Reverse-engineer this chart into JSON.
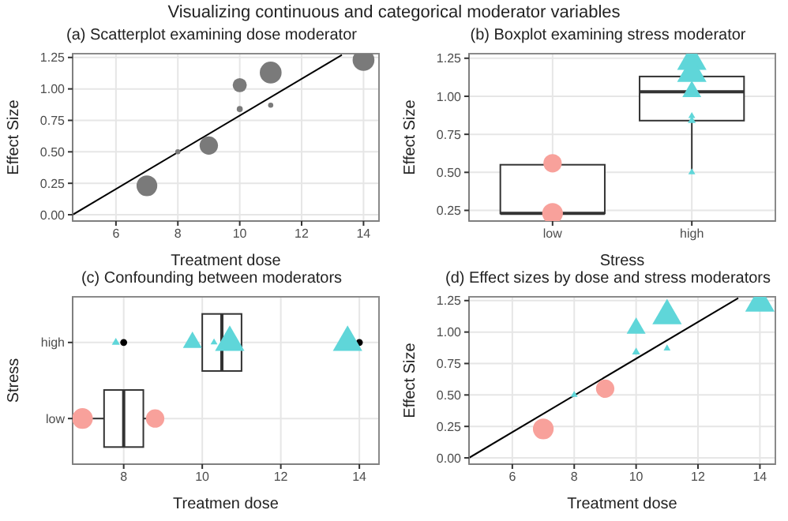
{
  "chart_data": [
    {
      "type": "other",
      "title": "Visualizing continuous and categorical moderator variables"
    },
    {
      "type": "scatter",
      "title": "(a) Scatterplot examining dose moderator",
      "xlabel": "Treatment dose",
      "ylabel": "Effect Size",
      "xlim": [
        4.6,
        14.5
      ],
      "xticks": [
        6,
        8,
        10,
        12,
        14
      ],
      "ylim": [
        -0.05,
        1.28
      ],
      "yticks": [
        {
          "value": 0,
          "label": "0.00"
        },
        0.25,
        {
          "value": 0.5,
          "label": "0.50"
        },
        0.75,
        {
          "value": 1,
          "label": "1.00"
        },
        1.25
      ],
      "grid": true,
      "series": [
        {
          "marker": "circle",
          "color": "#7a7a7a",
          "x": [
            7,
            8,
            9,
            10,
            10,
            11,
            11,
            14
          ],
          "values": [
            0.23,
            0.5,
            0.55,
            1.03,
            0.84,
            1.13,
            0.87,
            1.23
          ],
          "sizes": [
            0.9,
            0.03,
            0.7,
            0.4,
            0.05,
            1,
            0.03,
            1
          ]
        },
        {
          "type": "line",
          "marker": "none",
          "color": "#000000",
          "x": [
            4.6,
            13.3
          ],
          "values": [
            0,
            1.27
          ]
        }
      ]
    },
    {
      "type": "box",
      "title": "(b) Boxplot examining stress moderator",
      "xlabel": "Stress",
      "ylabel": "Effect Size",
      "categories": [
        "low",
        "high"
      ],
      "ylim": [
        0.18,
        1.28
      ],
      "yticks": [
        0.25,
        {
          "value": 0.5,
          "label": "0.50"
        },
        0.75,
        {
          "value": 1,
          "label": "1.00"
        },
        1.25
      ],
      "grid": true,
      "boxes": [
        {
          "low": 0.23,
          "q1": 0.23,
          "median": 0.23,
          "q3": 0.55,
          "high": 0.55
        },
        {
          "low": 0.5,
          "q1": 0.84,
          "median": 1.03,
          "q3": 1.13,
          "high": 1.23
        }
      ],
      "series": [
        {
          "type": "scatter",
          "marker": "circle",
          "color": "#f8a19b",
          "x": [
            "low",
            "low"
          ],
          "values": [
            0.56,
            0.23
          ],
          "sizes": [
            0.7,
            0.9
          ]
        },
        {
          "type": "scatter",
          "marker": "triangle",
          "color": "#5fd6d9",
          "x": [
            "high",
            "high",
            "high",
            "high",
            "high",
            "high"
          ],
          "values": [
            1.23,
            1.15,
            1.03,
            0.84,
            0.87,
            0.5
          ],
          "sizes": [
            1,
            1,
            0.4,
            0.05,
            0.03,
            0.03
          ]
        }
      ]
    },
    {
      "type": "box",
      "orientation": "horizontal",
      "title": "(c) Confounding between moderators",
      "xlabel": "Treatmen dose",
      "ylabel": "Stress",
      "categories": [
        "high",
        "low"
      ],
      "xlim": [
        6.7,
        14.5
      ],
      "xticks": [
        8,
        10,
        12,
        14
      ],
      "grid": true,
      "boxes": [
        {
          "low": 10,
          "q1": 10,
          "median": 10.5,
          "q3": 11,
          "high": 11,
          "outliers": [
            8,
            14
          ]
        },
        {
          "low": 7,
          "q1": 7.5,
          "median": 8,
          "q3": 8.5,
          "high": 9
        }
      ],
      "series": [
        {
          "type": "scatter",
          "marker": "circle",
          "color": "#f8a19b",
          "x": [
            "low",
            "low"
          ],
          "values": [
            6.95,
            8.8
          ],
          "sizes": [
            0.9,
            0.7
          ]
        },
        {
          "type": "scatter",
          "marker": "triangle",
          "color": "#5fd6d9",
          "x": [
            "high",
            "high",
            "high",
            "high",
            "high"
          ],
          "values": [
            7.8,
            9.75,
            10.3,
            10.7,
            13.7
          ],
          "sizes": [
            0.05,
            0.4,
            0.03,
            1,
            1
          ]
        }
      ]
    },
    {
      "type": "scatter",
      "title": "(d) Effect sizes by dose and stress moderators",
      "xlabel": "Treatment dose",
      "ylabel": "Effect Size",
      "xlim": [
        4.6,
        14.5
      ],
      "xticks": [
        6,
        8,
        10,
        12,
        14
      ],
      "ylim": [
        -0.05,
        1.28
      ],
      "yticks": [
        {
          "value": 0,
          "label": "0.00"
        },
        0.25,
        {
          "value": 0.5,
          "label": "0.50"
        },
        0.75,
        {
          "value": 1,
          "label": "1.00"
        },
        1.25
      ],
      "grid": true,
      "series": [
        {
          "marker": "circle",
          "color": "#f8a19b",
          "x": [
            7,
            9
          ],
          "values": [
            0.23,
            0.55
          ],
          "sizes": [
            0.9,
            0.7
          ]
        },
        {
          "marker": "triangle",
          "color": "#5fd6d9",
          "x": [
            8,
            10,
            10,
            11,
            11,
            14
          ],
          "values": [
            0.5,
            1.03,
            0.84,
            1.13,
            0.87,
            1.23
          ],
          "sizes": [
            0.03,
            0.4,
            0.05,
            1,
            0.03,
            1
          ]
        },
        {
          "type": "line",
          "marker": "none",
          "color": "#000000",
          "x": [
            4.6,
            13.3
          ],
          "values": [
            0,
            1.27
          ]
        }
      ]
    }
  ]
}
